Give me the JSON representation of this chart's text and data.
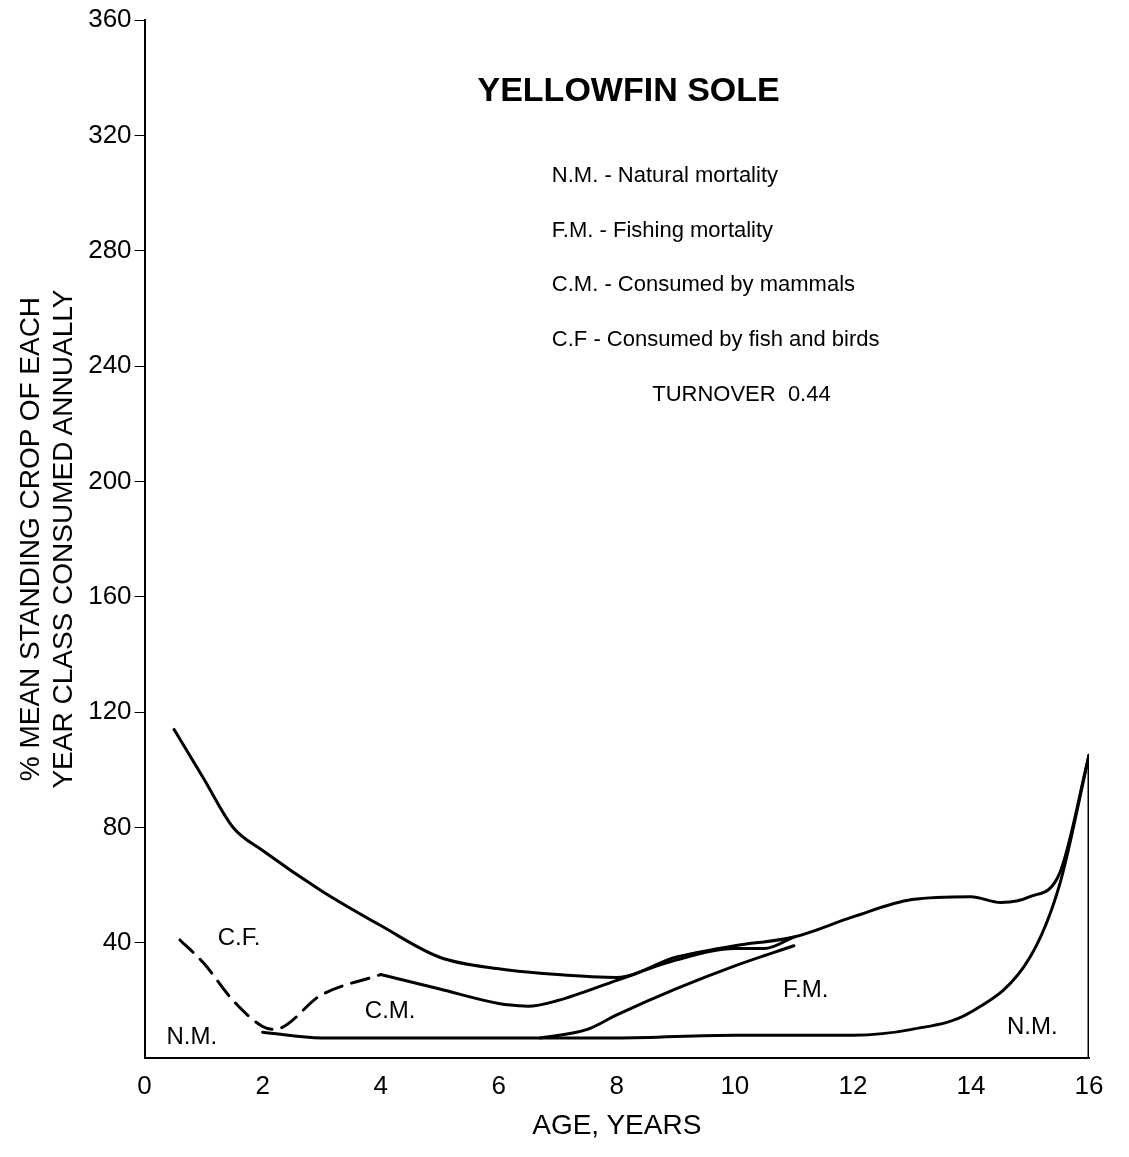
{
  "chart_data": {
    "type": "line",
    "title": "YELLOWFIN SOLE",
    "xlabel": "AGE, YEARS",
    "ylabel": "% MEAN STANDING CROP OF EACH\nYEAR CLASS CONSUMED ANNUALLY",
    "xlim": [
      0,
      16
    ],
    "ylim": [
      0,
      360
    ],
    "xticks": [
      0,
      2,
      4,
      6,
      8,
      10,
      12,
      14,
      16
    ],
    "yticks": [
      40,
      80,
      120,
      160,
      200,
      240,
      280,
      320,
      360
    ],
    "grid": false,
    "legend": false,
    "marker": "none",
    "series": [
      {
        "color": "#000000",
        "line_style": "solid",
        "x": [
          0.5,
          1,
          1.5,
          2,
          3,
          4,
          5,
          6,
          7,
          8,
          9,
          10,
          11,
          12,
          13,
          14,
          14.5,
          15,
          15.5,
          16
        ],
        "values": [
          114,
          97,
          80,
          72,
          58,
          46,
          35,
          31,
          29,
          28,
          35,
          39,
          42,
          49,
          55,
          56,
          54,
          56,
          64,
          105
        ]
      },
      {
        "color": "#000000",
        "line_style": "dashed",
        "x": [
          0.6,
          1,
          1.5,
          2,
          2.2,
          3,
          4
        ],
        "values": [
          41,
          33,
          20,
          11,
          10,
          22,
          29
        ]
      },
      {
        "color": "#000000",
        "line_style": "solid",
        "x": [
          4,
          5,
          6,
          6.5,
          7,
          8,
          9,
          10,
          10.5,
          11
        ],
        "values": [
          29,
          24,
          19,
          18,
          20,
          27,
          34,
          38,
          38,
          42
        ]
      },
      {
        "color": "#000000",
        "line_style": "solid",
        "x": [
          2,
          3,
          6,
          8,
          10,
          12,
          13,
          14,
          15,
          15.5,
          16
        ],
        "values": [
          9,
          7,
          7,
          7,
          8,
          8,
          10,
          16,
          35,
          60,
          105
        ]
      },
      {
        "color": "#000000",
        "line_style": "solid",
        "x": [
          6.7,
          7.5,
          8,
          9,
          10,
          11
        ],
        "values": [
          7,
          10,
          15,
          24,
          32,
          39
        ]
      },
      {
        "color": "#000000",
        "line_style": "solid",
        "x": [
          16,
          16
        ],
        "values": [
          0,
          105
        ]
      }
    ],
    "annotations": [
      "C.F.",
      "N.M.",
      "C.M.",
      "F.M.",
      "N.M.",
      "N.M. - Natural mortality",
      "F.M. - Fishing mortality",
      "C.M. - Consumed by mammals",
      "C.F - Consumed by fish and birds",
      "TURNOVER  0.44"
    ]
  }
}
